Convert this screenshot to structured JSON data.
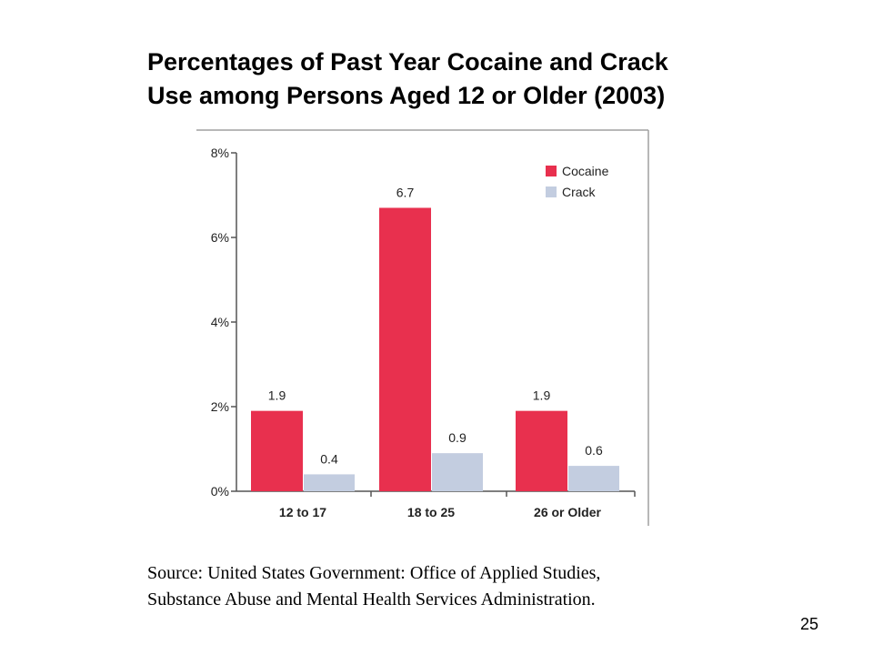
{
  "slide": {
    "title_line1": "Percentages of Past Year Cocaine and Crack",
    "title_line2": "Use among Persons Aged 12 or Older (2003)",
    "source_line1": "Source: United States Government: Office of Applied Studies,",
    "source_line2": "Substance Abuse and Mental Health Services Administration.",
    "page_number": "25"
  },
  "chart_data": {
    "type": "bar",
    "categories": [
      "12 to 17",
      "18 to 25",
      "26 or Older"
    ],
    "series": [
      {
        "name": "Cocaine",
        "values": [
          1.9,
          6.7,
          1.9
        ],
        "labels": [
          "1.9",
          "6.7",
          "1.9"
        ],
        "color": "#e8304e"
      },
      {
        "name": "Crack",
        "values": [
          0.4,
          0.9,
          0.6
        ],
        "labels": [
          "0.4",
          "0.9",
          "0.6"
        ],
        "color": "#c3cde0"
      }
    ],
    "y_ticks": [
      0,
      2,
      4,
      6,
      8
    ],
    "y_tick_labels": [
      "0%",
      "2%",
      "4%",
      "6%",
      "8%"
    ],
    "ylim": [
      0,
      8
    ],
    "grid": false,
    "legend_position": "top-right",
    "title": "",
    "xlabel": "",
    "ylabel": ""
  }
}
